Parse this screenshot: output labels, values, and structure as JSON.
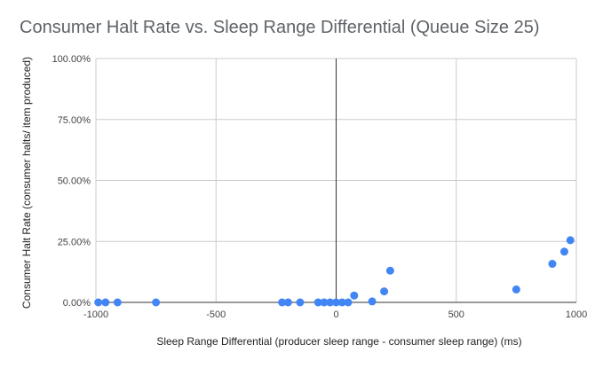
{
  "chart_data": {
    "type": "scatter",
    "title": "Consumer Halt Rate vs. Sleep Range Differential (Queue Size 25)",
    "xlabel": "Sleep Range Differential (producer sleep range - consumer sleep range) (ms)",
    "ylabel": "Consumer Halt Rate (consumer halts/ item produced)",
    "xlim": [
      -1000,
      1000
    ],
    "ylim": [
      0,
      1
    ],
    "x_ticks": [
      -1000,
      -500,
      0,
      500,
      1000
    ],
    "x_tick_labels": [
      "-1000",
      "-500",
      "0",
      "500",
      "1000"
    ],
    "y_ticks": [
      0,
      0.25,
      0.5,
      0.75,
      1
    ],
    "y_tick_labels": [
      "0.00%",
      "25.00%",
      "50.00%",
      "75.00%",
      "100.00%"
    ],
    "grid": true,
    "legend": "none",
    "point_color": "#4285f4",
    "points": [
      {
        "x": -990,
        "y": 0
      },
      {
        "x": -960,
        "y": 0
      },
      {
        "x": -910,
        "y": 0
      },
      {
        "x": -750,
        "y": 0
      },
      {
        "x": -225,
        "y": 0
      },
      {
        "x": -200,
        "y": 0
      },
      {
        "x": -150,
        "y": 0
      },
      {
        "x": -75,
        "y": 0
      },
      {
        "x": -50,
        "y": 0
      },
      {
        "x": -25,
        "y": 0
      },
      {
        "x": 0,
        "y": 0
      },
      {
        "x": 25,
        "y": 0
      },
      {
        "x": 50,
        "y": 0
      },
      {
        "x": 75,
        "y": 0.028
      },
      {
        "x": 150,
        "y": 0.004
      },
      {
        "x": 200,
        "y": 0.045
      },
      {
        "x": 225,
        "y": 0.13
      },
      {
        "x": 750,
        "y": 0.053
      },
      {
        "x": 900,
        "y": 0.158
      },
      {
        "x": 950,
        "y": 0.208
      },
      {
        "x": 975,
        "y": 0.255
      }
    ]
  }
}
